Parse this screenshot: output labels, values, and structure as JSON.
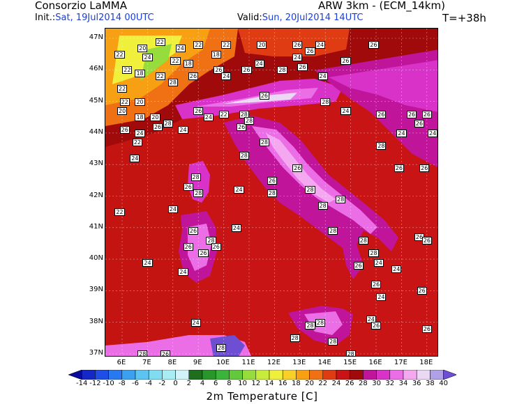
{
  "header": {
    "organization": "Consorzio LaMMA",
    "model": "ARW 3km - (ECM_14km)",
    "init_label": "Init.:",
    "init_value": "Sat, 19Jul2014 00UTC",
    "valid_label": "Valid:",
    "valid_value": "Sun, 20Jul2014 14UTC",
    "forecast_step": "T=+38h"
  },
  "latitudes": [
    "47N",
    "46N",
    "45N",
    "44N",
    "43N",
    "42N",
    "41N",
    "40N",
    "39N",
    "38N",
    "37N"
  ],
  "longitudes": [
    "6E",
    "7E",
    "8E",
    "9E",
    "10E",
    "11E",
    "12E",
    "13E",
    "14E",
    "15E",
    "16E",
    "17E",
    "18E"
  ],
  "colorbar": {
    "title": "2m Temperature [C]",
    "ticks": [
      "-14",
      "-12",
      "-10",
      "-8",
      "-6",
      "-4",
      "-2",
      "0",
      "2",
      "4",
      "6",
      "8",
      "10",
      "12",
      "14",
      "16",
      "18",
      "20",
      "22",
      "24",
      "26",
      "28",
      "30",
      "32",
      "34",
      "36",
      "38",
      "40"
    ],
    "colors": [
      "#0a0aa0",
      "#1428c8",
      "#1e4ee6",
      "#2878f0",
      "#3ca0f0",
      "#5cc4f0",
      "#80dcf0",
      "#a8ecf4",
      "#d0f4f8",
      "#1e6e1e",
      "#28962a",
      "#3cb43c",
      "#64c83c",
      "#96dc3c",
      "#c8ec3c",
      "#f0f03c",
      "#f8d028",
      "#f8a014",
      "#f07014",
      "#e03c14",
      "#c81414",
      "#a00a0a",
      "#c0149a",
      "#d832c8",
      "#ec6ee6",
      "#f4a8f0",
      "#ead8f4",
      "#b0a0e6",
      "#6e4ed2"
    ]
  },
  "temperature_labels": [
    {
      "t": "22",
      "lon": 7.5,
      "lat": 46.9
    },
    {
      "t": "20",
      "lon": 6.8,
      "lat": 46.7
    },
    {
      "t": "24",
      "lon": 8.3,
      "lat": 46.7
    },
    {
      "t": "22",
      "lon": 9.0,
      "lat": 46.8
    },
    {
      "t": "18",
      "lon": 9.7,
      "lat": 46.5
    },
    {
      "t": "22",
      "lon": 10.1,
      "lat": 46.8
    },
    {
      "t": "20",
      "lon": 11.5,
      "lat": 46.8
    },
    {
      "t": "26",
      "lon": 12.9,
      "lat": 46.8
    },
    {
      "t": "24",
      "lon": 13.8,
      "lat": 46.8
    },
    {
      "t": "26",
      "lon": 15.9,
      "lat": 46.8
    },
    {
      "t": "22",
      "lon": 5.9,
      "lat": 46.5
    },
    {
      "t": "24",
      "lon": 7.0,
      "lat": 46.4
    },
    {
      "t": "22",
      "lon": 8.1,
      "lat": 46.3
    },
    {
      "t": "18",
      "lon": 8.6,
      "lat": 46.2
    },
    {
      "t": "26",
      "lon": 9.8,
      "lat": 46.0
    },
    {
      "t": "24",
      "lon": 11.4,
      "lat": 46.2
    },
    {
      "t": "28",
      "lon": 12.3,
      "lat": 46.0
    },
    {
      "t": "26",
      "lon": 13.1,
      "lat": 46.1
    },
    {
      "t": "26",
      "lon": 14.8,
      "lat": 46.3
    },
    {
      "t": "24",
      "lon": 12.9,
      "lat": 46.4
    },
    {
      "t": "26",
      "lon": 13.4,
      "lat": 46.6
    },
    {
      "t": "22",
      "lon": 6.2,
      "lat": 46.0
    },
    {
      "t": "18",
      "lon": 6.7,
      "lat": 45.9
    },
    {
      "t": "22",
      "lon": 7.5,
      "lat": 45.8
    },
    {
      "t": "26",
      "lon": 8.8,
      "lat": 45.8
    },
    {
      "t": "24",
      "lon": 10.1,
      "lat": 45.8
    },
    {
      "t": "26",
      "lon": 10.9,
      "lat": 46.0
    },
    {
      "t": "22",
      "lon": 6.0,
      "lat": 45.4
    },
    {
      "t": "28",
      "lon": 8.0,
      "lat": 45.6
    },
    {
      "t": "24",
      "lon": 13.9,
      "lat": 45.8
    },
    {
      "t": "22",
      "lon": 6.1,
      "lat": 45.0
    },
    {
      "t": "20",
      "lon": 6.7,
      "lat": 45.0
    },
    {
      "t": "26",
      "lon": 9.0,
      "lat": 44.7
    },
    {
      "t": "24",
      "lon": 9.4,
      "lat": 44.5
    },
    {
      "t": "22",
      "lon": 10.0,
      "lat": 44.6
    },
    {
      "t": "28",
      "lon": 10.8,
      "lat": 44.6
    },
    {
      "t": "26",
      "lon": 11.6,
      "lat": 45.2
    },
    {
      "t": "24",
      "lon": 14.8,
      "lat": 44.7
    },
    {
      "t": "28",
      "lon": 14.0,
      "lat": 45.0
    },
    {
      "t": "20",
      "lon": 6.0,
      "lat": 44.7
    },
    {
      "t": "18",
      "lon": 6.7,
      "lat": 44.5
    },
    {
      "t": "20",
      "lon": 7.3,
      "lat": 44.5
    },
    {
      "t": "28",
      "lon": 7.8,
      "lat": 44.3
    },
    {
      "t": "24",
      "lon": 8.4,
      "lat": 44.1
    },
    {
      "t": "26",
      "lon": 6.1,
      "lat": 44.1
    },
    {
      "t": "24",
      "lon": 6.7,
      "lat": 44.0
    },
    {
      "t": "26",
      "lon": 7.4,
      "lat": 44.2
    },
    {
      "t": "26",
      "lon": 10.7,
      "lat": 44.2
    },
    {
      "t": "28",
      "lon": 11.0,
      "lat": 44.4
    },
    {
      "t": "22",
      "lon": 6.6,
      "lat": 43.7
    },
    {
      "t": "28",
      "lon": 11.6,
      "lat": 43.7
    },
    {
      "t": "26",
      "lon": 16.2,
      "lat": 44.6
    },
    {
      "t": "26",
      "lon": 17.4,
      "lat": 44.6
    },
    {
      "t": "26",
      "lon": 18.0,
      "lat": 44.6
    },
    {
      "t": "24",
      "lon": 17.0,
      "lat": 44.0
    },
    {
      "t": "26",
      "lon": 17.7,
      "lat": 44.3
    },
    {
      "t": "24",
      "lon": 18.3,
      "lat": 44.0
    },
    {
      "t": "28",
      "lon": 16.2,
      "lat": 43.6
    },
    {
      "t": "24",
      "lon": 6.5,
      "lat": 43.2
    },
    {
      "t": "28",
      "lon": 10.8,
      "lat": 43.3
    },
    {
      "t": "26",
      "lon": 12.9,
      "lat": 42.9
    },
    {
      "t": "26",
      "lon": 16.9,
      "lat": 42.9
    },
    {
      "t": "26",
      "lon": 17.9,
      "lat": 42.9
    },
    {
      "t": "28",
      "lon": 8.9,
      "lat": 42.6
    },
    {
      "t": "26",
      "lon": 8.6,
      "lat": 42.3
    },
    {
      "t": "28",
      "lon": 9.0,
      "lat": 42.1
    },
    {
      "t": "24",
      "lon": 10.6,
      "lat": 42.2
    },
    {
      "t": "26",
      "lon": 11.9,
      "lat": 42.5
    },
    {
      "t": "28",
      "lon": 11.9,
      "lat": 42.1
    },
    {
      "t": "28",
      "lon": 13.4,
      "lat": 42.2
    },
    {
      "t": "28",
      "lon": 14.6,
      "lat": 41.9
    },
    {
      "t": "28",
      "lon": 13.9,
      "lat": 41.7
    },
    {
      "t": "22",
      "lon": 5.9,
      "lat": 41.5
    },
    {
      "t": "24",
      "lon": 8.0,
      "lat": 41.6
    },
    {
      "t": "24",
      "lon": 10.5,
      "lat": 41.0
    },
    {
      "t": "26",
      "lon": 8.8,
      "lat": 40.9
    },
    {
      "t": "28",
      "lon": 9.5,
      "lat": 40.6
    },
    {
      "t": "26",
      "lon": 8.6,
      "lat": 40.4
    },
    {
      "t": "26",
      "lon": 9.7,
      "lat": 40.4
    },
    {
      "t": "26",
      "lon": 9.2,
      "lat": 40.2
    },
    {
      "t": "28",
      "lon": 14.3,
      "lat": 40.9
    },
    {
      "t": "28",
      "lon": 15.5,
      "lat": 40.6
    },
    {
      "t": "28",
      "lon": 15.9,
      "lat": 40.2
    },
    {
      "t": "26",
      "lon": 17.7,
      "lat": 40.7
    },
    {
      "t": "26",
      "lon": 18.0,
      "lat": 40.6
    },
    {
      "t": "24",
      "lon": 7.0,
      "lat": 39.9
    },
    {
      "t": "24",
      "lon": 8.4,
      "lat": 39.6
    },
    {
      "t": "26",
      "lon": 15.3,
      "lat": 39.8
    },
    {
      "t": "24",
      "lon": 16.1,
      "lat": 39.9
    },
    {
      "t": "24",
      "lon": 16.8,
      "lat": 39.7
    },
    {
      "t": "26",
      "lon": 16.0,
      "lat": 39.2
    },
    {
      "t": "24",
      "lon": 16.2,
      "lat": 38.8
    },
    {
      "t": "26",
      "lon": 17.8,
      "lat": 39.0
    },
    {
      "t": "24",
      "lon": 8.9,
      "lat": 38.0
    },
    {
      "t": "28",
      "lon": 13.8,
      "lat": 38.0
    },
    {
      "t": "28",
      "lon": 13.4,
      "lat": 37.9
    },
    {
      "t": "24",
      "lon": 15.8,
      "lat": 38.1
    },
    {
      "t": "26",
      "lon": 16.0,
      "lat": 37.9
    },
    {
      "t": "26",
      "lon": 18.0,
      "lat": 37.8
    },
    {
      "t": "28",
      "lon": 12.8,
      "lat": 37.5
    },
    {
      "t": "28",
      "lon": 14.3,
      "lat": 37.4
    },
    {
      "t": "28",
      "lon": 9.9,
      "lat": 37.2
    },
    {
      "t": "28",
      "lon": 6.8,
      "lat": 36.9
    },
    {
      "t": "26",
      "lon": 7.7,
      "lat": 36.9
    },
    {
      "t": "28",
      "lon": 15.0,
      "lat": 36.7
    }
  ]
}
